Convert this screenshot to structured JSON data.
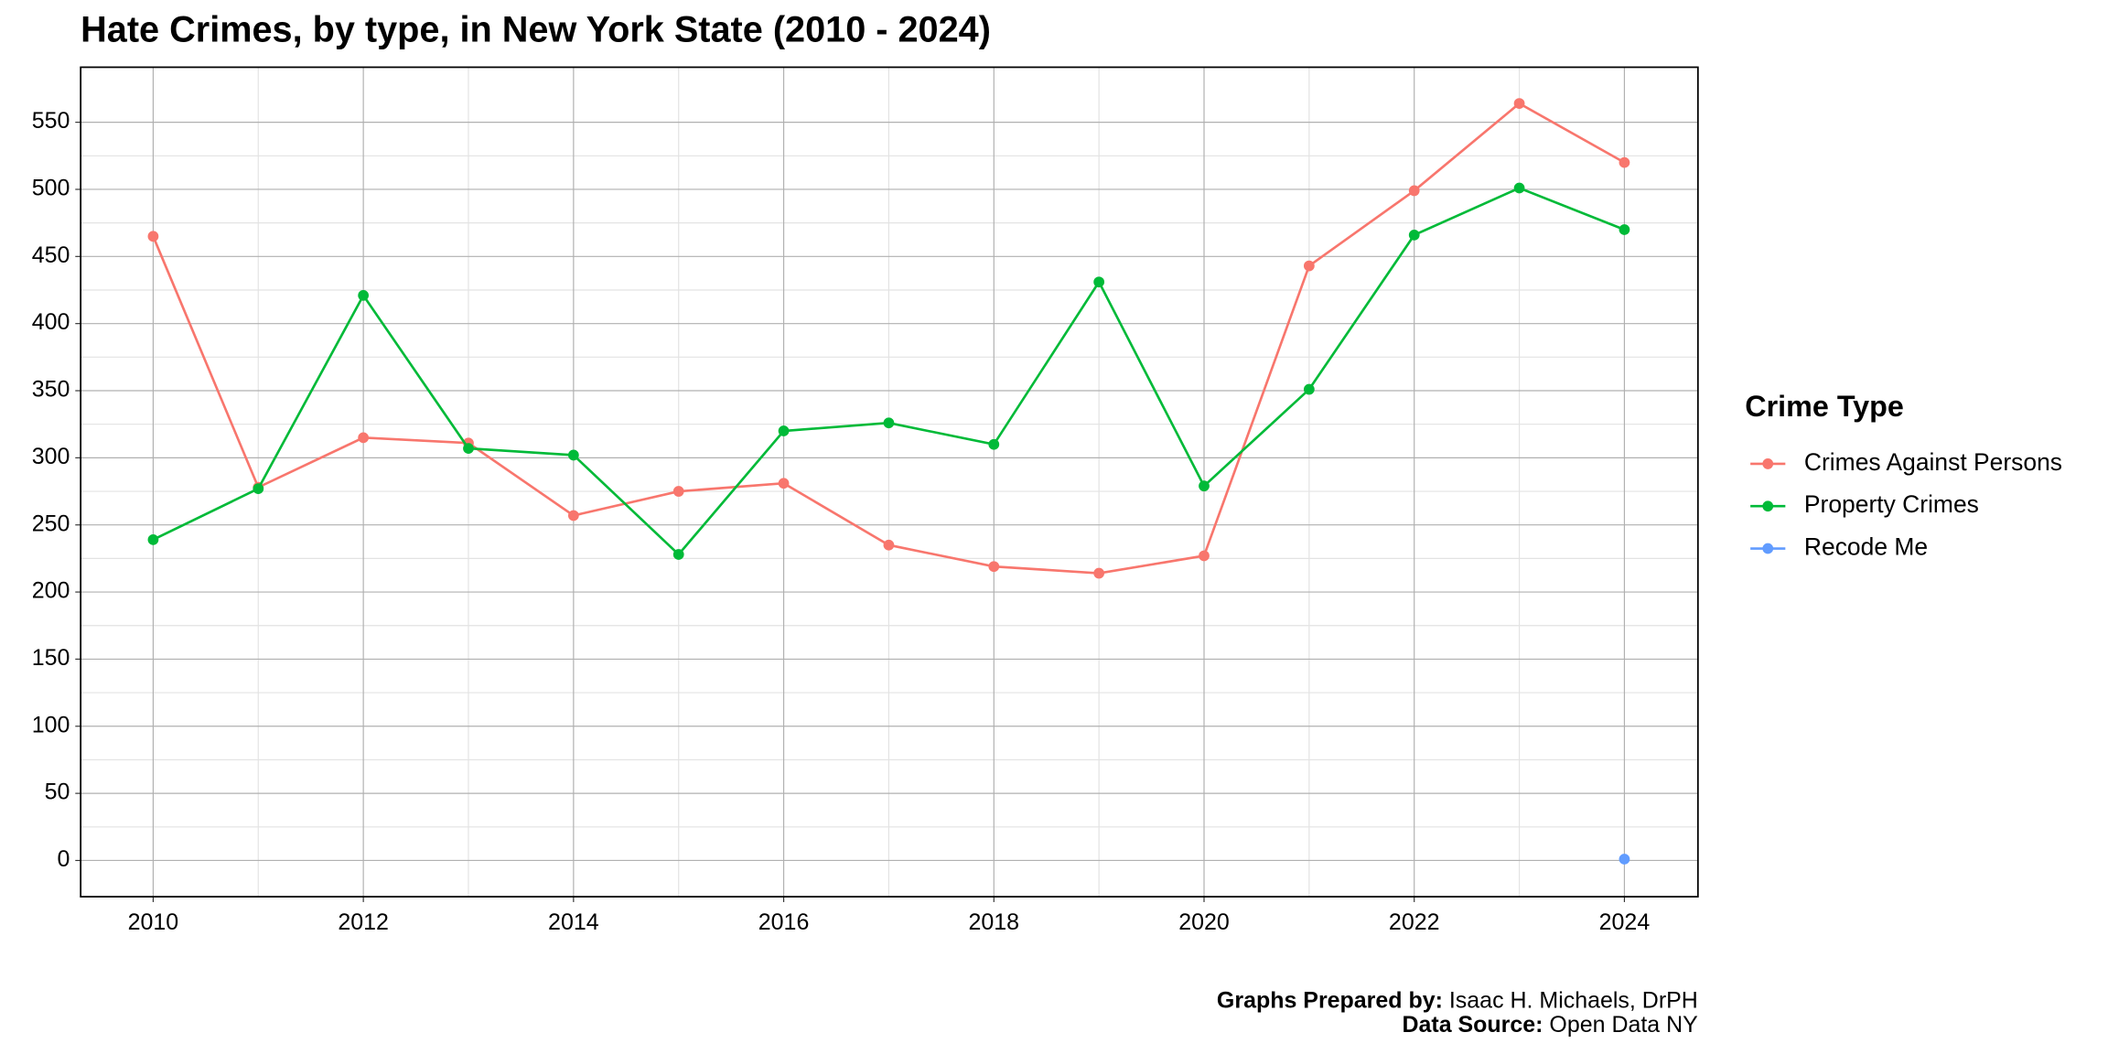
{
  "chart_data": {
    "type": "line",
    "title": "Hate Crimes, by type, in New York State (2010 - 2024)",
    "x": [
      2010,
      2011,
      2012,
      2013,
      2014,
      2015,
      2016,
      2017,
      2018,
      2019,
      2020,
      2021,
      2022,
      2023,
      2024
    ],
    "series": [
      {
        "name": "Crimes Against Persons",
        "color": "#F8766D",
        "values": [
          465,
          278,
          315,
          311,
          257,
          275,
          281,
          235,
          219,
          214,
          227,
          443,
          499,
          564,
          520
        ]
      },
      {
        "name": "Property Crimes",
        "color": "#00BA38",
        "values": [
          239,
          277,
          421,
          307,
          302,
          228,
          320,
          326,
          310,
          431,
          279,
          351,
          466,
          501,
          470
        ]
      },
      {
        "name": "Recode Me",
        "color": "#619CFF",
        "values": [
          null,
          null,
          null,
          null,
          null,
          null,
          null,
          null,
          null,
          null,
          null,
          null,
          null,
          null,
          1
        ]
      }
    ],
    "xlim": [
      2009.31,
      2024.7
    ],
    "xticks": [
      2010,
      2012,
      2014,
      2016,
      2018,
      2020,
      2022,
      2024
    ],
    "ylim": [
      -27,
      591
    ],
    "yticks": [
      0,
      50,
      100,
      150,
      200,
      250,
      300,
      350,
      400,
      450,
      500,
      550
    ],
    "grid": true,
    "minor_grid": true,
    "legend_title": "Crime Type",
    "legend_position": "right",
    "caption": [
      {
        "label": "Graphs Prepared by:",
        "text": "Isaac H. Michaels, DrPH"
      },
      {
        "label": "Data Source:",
        "text": "Open Data NY"
      }
    ]
  }
}
